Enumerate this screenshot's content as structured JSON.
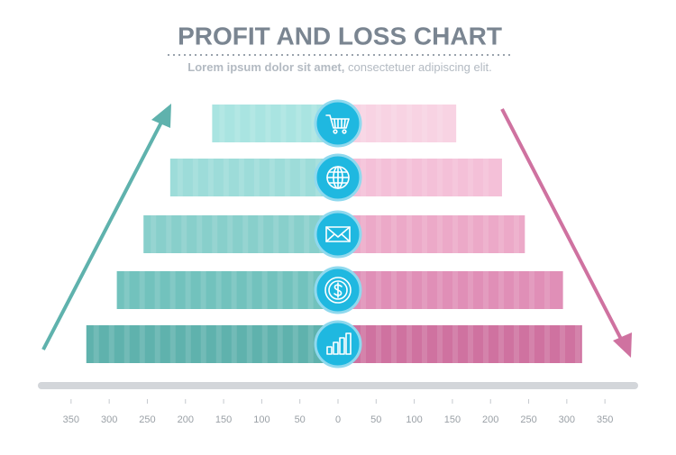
{
  "chart_data": {
    "type": "butterfly-bar",
    "title": "PROFIT AND LOSS CHART",
    "subtitle": [
      "Lorem ipsum dolor sit amet,",
      "consectetuer adipiscing elit."
    ],
    "categories": [
      null,
      null,
      null,
      null,
      null
    ],
    "series": [
      {
        "colors": [
          "#a9e4e1",
          "#9ddcd9",
          "#88cfcb",
          "#72c2bd",
          "#5fb2ad"
        ],
        "values": [
          -165,
          -220,
          -255,
          -290,
          -330
        ]
      },
      {
        "colors": [
          "#f8d3e3",
          "#f4c0d8",
          "#eca9c8",
          "#e08fb7",
          "#cf72a0"
        ],
        "values": [
          155,
          215,
          245,
          295,
          320
        ]
      }
    ],
    "xlim": [
      -390,
      390
    ],
    "xticks": [
      {
        "value": -350,
        "label": "350"
      },
      {
        "value": -300,
        "label": "300"
      },
      {
        "value": -250,
        "label": "250"
      },
      {
        "value": -200,
        "label": "200"
      },
      {
        "value": -150,
        "label": "150"
      },
      {
        "value": -100,
        "label": "100"
      },
      {
        "value": -50,
        "label": "50"
      },
      0,
      50,
      100,
      150,
      200,
      250,
      300,
      350
    ]
  }
}
